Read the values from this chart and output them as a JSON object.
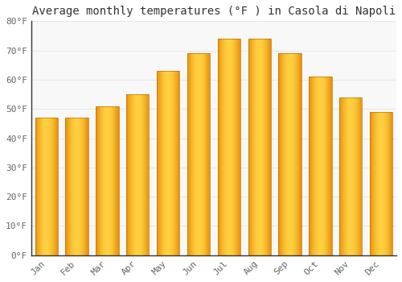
{
  "title": "Average monthly temperatures (°F ) in Casola di Napoli",
  "months": [
    "Jan",
    "Feb",
    "Mar",
    "Apr",
    "May",
    "Jun",
    "Jul",
    "Aug",
    "Sep",
    "Oct",
    "Nov",
    "Dec"
  ],
  "values": [
    47,
    47,
    51,
    55,
    63,
    69,
    74,
    74,
    69,
    61,
    54,
    49
  ],
  "bar_color_left": "#E8900A",
  "bar_color_center": "#FFD040",
  "bar_color_right": "#E8900A",
  "ylim": [
    0,
    80
  ],
  "yticks": [
    0,
    10,
    20,
    30,
    40,
    50,
    60,
    70,
    80
  ],
  "ytick_labels": [
    "0°F",
    "10°F",
    "20°F",
    "30°F",
    "40°F",
    "50°F",
    "60°F",
    "70°F",
    "80°F"
  ],
  "background_color": "#ffffff",
  "plot_bg_color": "#f8f8f8",
  "grid_color": "#e8e8e8",
  "title_fontsize": 10,
  "tick_fontsize": 8,
  "font_family": "monospace",
  "tick_color": "#666666",
  "title_color": "#333333",
  "bar_width": 0.75
}
